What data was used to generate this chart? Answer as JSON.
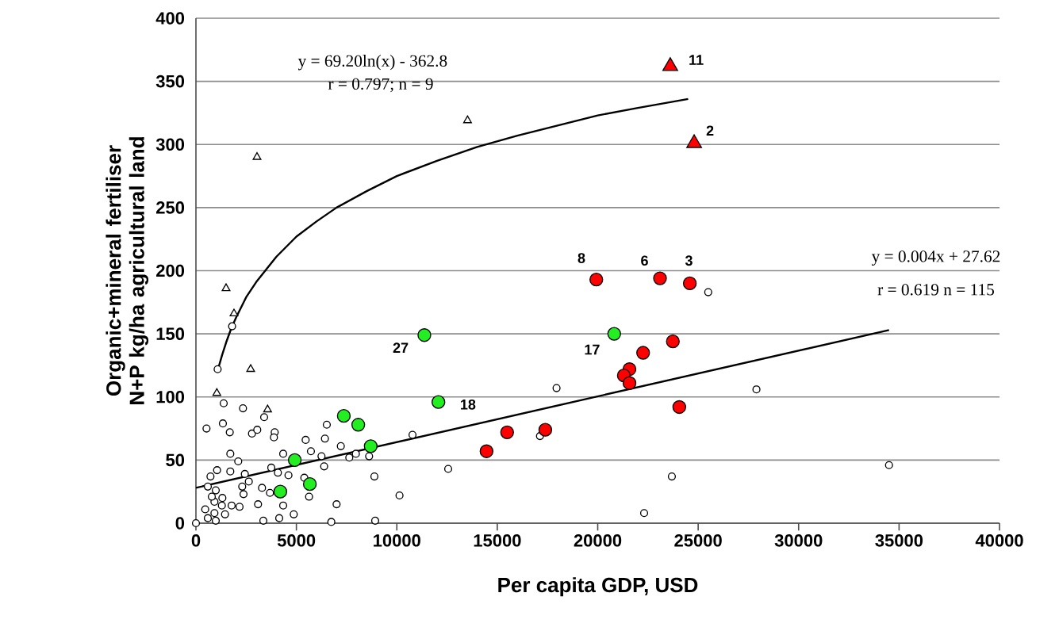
{
  "chart_data": {
    "type": "scatter",
    "xlabel": "Per capita GDP, USD",
    "ylabel": "Organic+mineral fertiliser N+P kg/ha agricultural land",
    "xlim": [
      0,
      40000
    ],
    "ylim": [
      0,
      400
    ],
    "xticks": [
      0,
      5000,
      10000,
      15000,
      20000,
      25000,
      30000,
      35000,
      40000
    ],
    "yticks": [
      0,
      50,
      100,
      150,
      200,
      250,
      300,
      350,
      400
    ],
    "grid": "y",
    "series": [
      {
        "marker": "circle",
        "color": "#ffffff",
        "x": [
          0,
          526,
          1382,
          2342,
          1342,
          1684,
          2790,
          3053,
          3921,
          3882,
          3395,
          5461,
          6514,
          6421,
          7212,
          5724,
          4343,
          1711,
          2105,
          1053,
          1711,
          2434,
          2632,
          724,
          3750,
          4080,
          4606,
          6250,
          6382,
          7633,
          7962,
          8620,
          8883,
          10133,
          3290,
          3685,
          4343,
          4869,
          4145,
          3356,
          3092,
          2369,
          2303,
          2171,
          1777,
          1448,
          987,
          592,
          461,
          921,
          1290,
          921,
          790,
          987,
          1316,
          592,
          6738,
          7001,
          5632,
          5395,
          8923,
          10780,
          12557,
          17950,
          17125,
          25500,
          27900,
          34500,
          23690,
          22310,
          1080,
          1800
        ],
        "values": [
          0,
          75,
          95,
          91,
          79,
          72,
          71,
          74,
          72,
          68,
          84,
          66,
          78,
          67,
          61,
          57,
          55,
          55,
          49,
          42,
          41,
          39,
          33,
          37,
          44,
          40,
          38,
          53,
          45,
          52,
          55,
          53,
          37,
          22,
          28,
          24,
          14,
          7,
          4,
          2,
          15,
          23,
          29,
          13,
          14,
          7,
          2,
          4,
          11,
          8,
          14,
          17,
          21,
          26,
          20,
          29,
          1,
          15,
          21,
          36,
          2,
          70,
          43,
          107,
          69,
          183,
          106,
          46,
          37,
          8,
          122,
          156
        ]
      },
      {
        "marker": "triangle",
        "color": "#ffffff",
        "x": [
          3040,
          13520,
          1500,
          1895,
          2725,
          1040,
          3566
        ],
        "values": [
          290,
          319,
          186,
          166,
          122,
          103,
          90
        ]
      },
      {
        "marker": "circle",
        "color": "#22ee22",
        "x": [
          11370,
          12070,
          20820,
          7360,
          8080,
          8700,
          4920,
          5670,
          4200
        ],
        "values": [
          149,
          96,
          150,
          85,
          78,
          61,
          50,
          31,
          25
        ]
      },
      {
        "marker": "circle",
        "color": "#ff0000",
        "x": [
          19930,
          23100,
          24585,
          23740,
          22260,
          21580,
          21300,
          21580,
          24060,
          14465,
          15490,
          17390
        ],
        "values": [
          193,
          194,
          190,
          144,
          135,
          122,
          117,
          111,
          92,
          57,
          72,
          74
        ]
      },
      {
        "marker": "triangle",
        "color": "#ff0000",
        "x": [
          23610,
          24800
        ],
        "values": [
          362,
          301
        ]
      },
      {
        "type": "line",
        "marker": "none",
        "color": "#000000",
        "x": [
          1100,
          1300,
          1500,
          1750,
          2000,
          2500,
          3000,
          4000,
          5000,
          6000,
          7000,
          8500,
          10000,
          12000,
          14000,
          16000,
          18000,
          20000,
          22000,
          24500
        ],
        "values": [
          122,
          133,
          143,
          154,
          163,
          179,
          191,
          211,
          227,
          239,
          250,
          263,
          275,
          287,
          298,
          307,
          315,
          323,
          329,
          336
        ]
      },
      {
        "type": "line",
        "marker": "none",
        "color": "#000000",
        "x": [
          0,
          34500
        ],
        "values": [
          28,
          153
        ]
      }
    ],
    "annotations": [
      "y = 69.20ln(x) - 362.8",
      "r = 0.797;  n = 9",
      "y = 0.004x + 27.62",
      "r = 0.619  n = 115",
      "11",
      "2",
      "8",
      "6",
      "3",
      "27",
      "17",
      "18"
    ]
  }
}
